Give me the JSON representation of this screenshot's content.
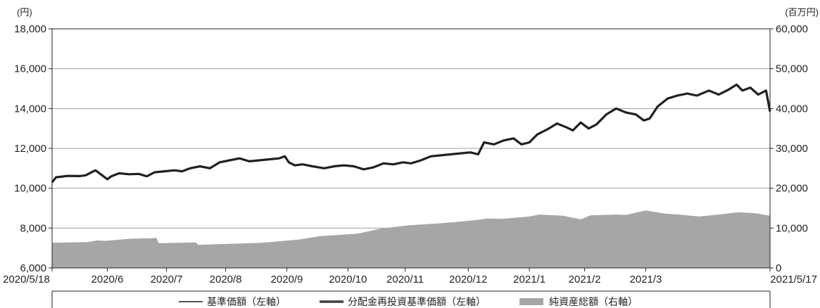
{
  "chart_data": {
    "type": "line",
    "left_unit": "(円)",
    "right_unit": "(百万円)",
    "left_ylim": [
      6000,
      18000
    ],
    "left_ticks": [
      "6,000",
      "8,000",
      "10,000",
      "12,000",
      "14,000",
      "16,000",
      "18,000"
    ],
    "right_ylim": [
      0,
      60000
    ],
    "right_ticks": [
      "0",
      "10,000",
      "20,000",
      "30,000",
      "40,000",
      "50,000",
      "60,000"
    ],
    "x_range": [
      "2020-05-18",
      "2021-05-17"
    ],
    "x_ticks": [
      {
        "label": "2020/5/18",
        "date": "2020-05-18"
      },
      {
        "label": "2020/6",
        "date": "2020-06-15"
      },
      {
        "label": "2020/7",
        "date": "2020-07-15"
      },
      {
        "label": "2020/8",
        "date": "2020-08-14"
      },
      {
        "label": "2020/9",
        "date": "2020-09-14"
      },
      {
        "label": "2020/10",
        "date": "2020-10-15"
      },
      {
        "label": "2020/11",
        "date": "2020-11-13"
      },
      {
        "label": "2020/12",
        "date": "2020-12-15"
      },
      {
        "label": "2021/1",
        "date": "2021-01-15"
      },
      {
        "label": "2021/2",
        "date": "2021-02-12"
      },
      {
        "label": "2021/3",
        "date": "2021-03-15"
      },
      {
        "label": "2021/5/17",
        "date": "2021-05-17"
      }
    ],
    "grid": true,
    "legend_position": "bottom",
    "series": [
      {
        "name": "基準価額（左軸）",
        "axis": "left",
        "color": "#231f20",
        "points": [
          [
            "2020-05-18",
            10300
          ],
          [
            "2020-05-20",
            10550
          ],
          [
            "2020-05-26",
            10620
          ],
          [
            "2020-06-01",
            10610
          ],
          [
            "2020-06-04",
            10650
          ],
          [
            "2020-06-09",
            10900
          ],
          [
            "2020-06-11",
            10750
          ],
          [
            "2020-06-15",
            10450
          ],
          [
            "2020-06-17",
            10600
          ],
          [
            "2020-06-21",
            10750
          ],
          [
            "2020-06-26",
            10700
          ],
          [
            "2020-07-01",
            10720
          ],
          [
            "2020-07-05",
            10600
          ],
          [
            "2020-07-09",
            10800
          ],
          [
            "2020-07-14",
            10850
          ],
          [
            "2020-07-19",
            10900
          ],
          [
            "2020-07-23",
            10850
          ],
          [
            "2020-07-27",
            11000
          ],
          [
            "2020-08-01",
            11100
          ],
          [
            "2020-08-06",
            11000
          ],
          [
            "2020-08-11",
            11300
          ],
          [
            "2020-08-16",
            11400
          ],
          [
            "2020-08-21",
            11500
          ],
          [
            "2020-08-26",
            11350
          ],
          [
            "2020-08-31",
            11400
          ],
          [
            "2020-09-05",
            11450
          ],
          [
            "2020-09-10",
            11500
          ],
          [
            "2020-09-13",
            11600
          ],
          [
            "2020-09-15",
            11300
          ],
          [
            "2020-09-18",
            11150
          ],
          [
            "2020-09-22",
            11200
          ],
          [
            "2020-09-27",
            11100
          ],
          [
            "2020-10-03",
            11000
          ],
          [
            "2020-10-08",
            11100
          ],
          [
            "2020-10-13",
            11150
          ],
          [
            "2020-10-18",
            11100
          ],
          [
            "2020-10-23",
            10950
          ],
          [
            "2020-10-28",
            11050
          ],
          [
            "2020-11-02",
            11250
          ],
          [
            "2020-11-07",
            11200
          ],
          [
            "2020-11-12",
            11300
          ],
          [
            "2020-11-16",
            11250
          ],
          [
            "2020-11-21",
            11400
          ],
          [
            "2020-11-26",
            11600
          ],
          [
            "2020-12-01",
            11650
          ],
          [
            "2020-12-06",
            11700
          ],
          [
            "2020-12-11",
            11750
          ],
          [
            "2020-12-16",
            11800
          ],
          [
            "2020-12-20",
            11700
          ],
          [
            "2020-12-23",
            12300
          ],
          [
            "2020-12-28",
            12200
          ],
          [
            "2021-01-02",
            12400
          ],
          [
            "2021-01-07",
            12500
          ],
          [
            "2021-01-11",
            12200
          ],
          [
            "2021-01-15",
            12300
          ],
          [
            "2021-01-19",
            12700
          ],
          [
            "2021-01-24",
            12950
          ],
          [
            "2021-01-29",
            13250
          ],
          [
            "2021-02-03",
            13050
          ],
          [
            "2021-02-06",
            12900
          ],
          [
            "2021-02-10",
            13300
          ],
          [
            "2021-02-14",
            13000
          ],
          [
            "2021-02-18",
            13200
          ],
          [
            "2021-02-23",
            13700
          ],
          [
            "2021-02-28",
            14000
          ],
          [
            "2021-03-05",
            13800
          ],
          [
            "2021-03-10",
            13700
          ],
          [
            "2021-03-14",
            13400
          ],
          [
            "2021-03-17",
            13500
          ],
          [
            "2021-03-21",
            14100
          ],
          [
            "2021-03-26",
            14500
          ],
          [
            "2021-03-31",
            14650
          ],
          [
            "2021-04-05",
            14750
          ],
          [
            "2021-04-10",
            14650
          ],
          [
            "2021-04-16",
            14900
          ],
          [
            "2021-04-21",
            14700
          ],
          [
            "2021-04-26",
            14950
          ],
          [
            "2021-04-30",
            15200
          ],
          [
            "2021-05-03",
            14900
          ],
          [
            "2021-05-07",
            15050
          ],
          [
            "2021-05-11",
            14700
          ],
          [
            "2021-05-15",
            14900
          ],
          [
            "2021-05-17",
            13850
          ]
        ]
      },
      {
        "name": "分配金再投資基準価額（左軸）",
        "axis": "left",
        "color": "#404040",
        "points": [
          [
            "2020-05-18",
            10300
          ],
          [
            "2020-05-20",
            10550
          ],
          [
            "2020-05-26",
            10620
          ],
          [
            "2020-06-01",
            10610
          ],
          [
            "2020-06-04",
            10650
          ],
          [
            "2020-06-09",
            10900
          ],
          [
            "2020-06-11",
            10750
          ],
          [
            "2020-06-15",
            10450
          ],
          [
            "2020-06-17",
            10600
          ],
          [
            "2020-06-21",
            10750
          ],
          [
            "2020-06-26",
            10700
          ],
          [
            "2020-07-01",
            10720
          ],
          [
            "2020-07-05",
            10600
          ],
          [
            "2020-07-09",
            10800
          ],
          [
            "2020-07-14",
            10850
          ],
          [
            "2020-07-19",
            10900
          ],
          [
            "2020-07-23",
            10850
          ],
          [
            "2020-07-27",
            11000
          ],
          [
            "2020-08-01",
            11100
          ],
          [
            "2020-08-06",
            11000
          ],
          [
            "2020-08-11",
            11300
          ],
          [
            "2020-08-16",
            11400
          ],
          [
            "2020-08-21",
            11500
          ],
          [
            "2020-08-26",
            11350
          ],
          [
            "2020-08-31",
            11400
          ],
          [
            "2020-09-05",
            11450
          ],
          [
            "2020-09-10",
            11500
          ],
          [
            "2020-09-13",
            11600
          ],
          [
            "2020-09-15",
            11300
          ],
          [
            "2020-09-18",
            11150
          ],
          [
            "2020-09-22",
            11200
          ],
          [
            "2020-09-27",
            11100
          ],
          [
            "2020-10-03",
            11000
          ],
          [
            "2020-10-08",
            11100
          ],
          [
            "2020-10-13",
            11150
          ],
          [
            "2020-10-18",
            11100
          ],
          [
            "2020-10-23",
            10950
          ],
          [
            "2020-10-28",
            11050
          ],
          [
            "2020-11-02",
            11250
          ],
          [
            "2020-11-07",
            11200
          ],
          [
            "2020-11-12",
            11300
          ],
          [
            "2020-11-16",
            11250
          ],
          [
            "2020-11-21",
            11400
          ],
          [
            "2020-11-26",
            11600
          ],
          [
            "2020-12-01",
            11650
          ],
          [
            "2020-12-06",
            11700
          ],
          [
            "2020-12-11",
            11750
          ],
          [
            "2020-12-16",
            11800
          ],
          [
            "2020-12-20",
            11700
          ],
          [
            "2020-12-23",
            12300
          ],
          [
            "2020-12-28",
            12200
          ],
          [
            "2021-01-02",
            12400
          ],
          [
            "2021-01-07",
            12500
          ],
          [
            "2021-01-11",
            12200
          ],
          [
            "2021-01-15",
            12300
          ],
          [
            "2021-01-19",
            12700
          ],
          [
            "2021-01-24",
            12950
          ],
          [
            "2021-01-29",
            13250
          ],
          [
            "2021-02-03",
            13050
          ],
          [
            "2021-02-06",
            12900
          ],
          [
            "2021-02-10",
            13300
          ],
          [
            "2021-02-14",
            13000
          ],
          [
            "2021-02-18",
            13200
          ],
          [
            "2021-02-23",
            13700
          ],
          [
            "2021-02-28",
            14000
          ],
          [
            "2021-03-05",
            13800
          ],
          [
            "2021-03-10",
            13700
          ],
          [
            "2021-03-14",
            13400
          ],
          [
            "2021-03-17",
            13500
          ],
          [
            "2021-03-21",
            14100
          ],
          [
            "2021-03-26",
            14500
          ],
          [
            "2021-03-31",
            14650
          ],
          [
            "2021-04-05",
            14750
          ],
          [
            "2021-04-10",
            14650
          ],
          [
            "2021-04-16",
            14900
          ],
          [
            "2021-04-21",
            14700
          ],
          [
            "2021-04-26",
            14950
          ],
          [
            "2021-04-30",
            15200
          ],
          [
            "2021-05-03",
            14900
          ],
          [
            "2021-05-07",
            15050
          ],
          [
            "2021-05-11",
            14700
          ],
          [
            "2021-05-15",
            14900
          ],
          [
            "2021-05-17",
            13850
          ]
        ]
      },
      {
        "name": "純資産総額（右軸）",
        "axis": "right",
        "color": "#a6a6a6",
        "points": [
          [
            "2020-05-18",
            6300
          ],
          [
            "2020-06-05",
            6500
          ],
          [
            "2020-06-10",
            6900
          ],
          [
            "2020-06-14",
            6800
          ],
          [
            "2020-06-26",
            7300
          ],
          [
            "2020-07-10",
            7500
          ],
          [
            "2020-07-11",
            6200
          ],
          [
            "2020-07-30",
            6400
          ],
          [
            "2020-07-31",
            5800
          ],
          [
            "2020-08-20",
            6100
          ],
          [
            "2020-09-01",
            6300
          ],
          [
            "2020-09-20",
            7100
          ],
          [
            "2020-10-01",
            8000
          ],
          [
            "2020-10-20",
            8600
          ],
          [
            "2020-11-01",
            9900
          ],
          [
            "2020-11-15",
            10700
          ],
          [
            "2020-12-01",
            11200
          ],
          [
            "2020-12-15",
            11800
          ],
          [
            "2020-12-25",
            12400
          ],
          [
            "2021-01-01",
            12300
          ],
          [
            "2021-01-15",
            12900
          ],
          [
            "2021-01-20",
            13400
          ],
          [
            "2021-02-01",
            13100
          ],
          [
            "2021-02-10",
            12200
          ],
          [
            "2021-02-15",
            13200
          ],
          [
            "2021-02-28",
            13400
          ],
          [
            "2021-03-05",
            13300
          ],
          [
            "2021-03-10",
            13900
          ],
          [
            "2021-03-15",
            14400
          ],
          [
            "2021-03-25",
            13600
          ],
          [
            "2021-04-01",
            13400
          ],
          [
            "2021-04-11",
            12900
          ],
          [
            "2021-04-21",
            13400
          ],
          [
            "2021-05-01",
            14000
          ],
          [
            "2021-05-10",
            13700
          ],
          [
            "2021-05-17",
            13100
          ]
        ]
      }
    ]
  }
}
